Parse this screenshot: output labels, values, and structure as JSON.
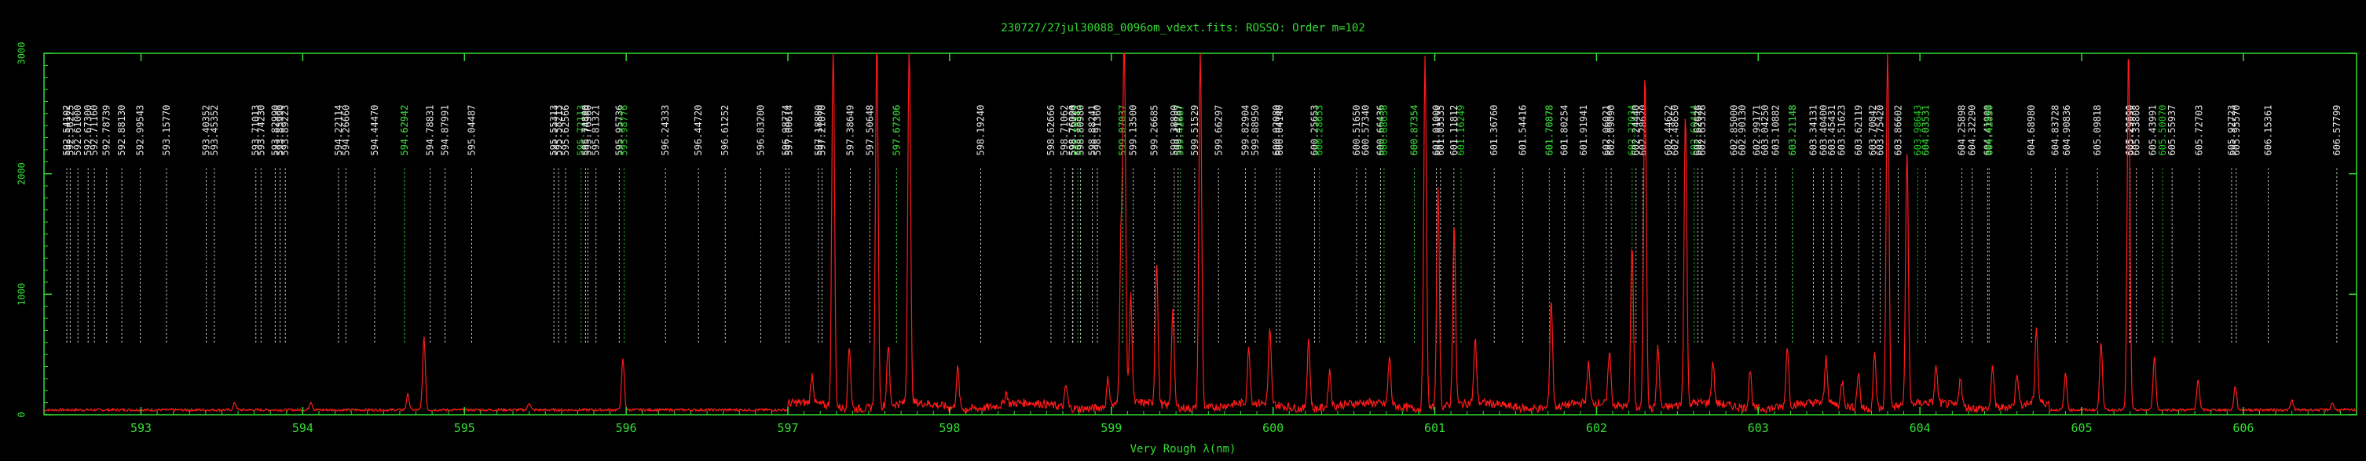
{
  "chart_data": {
    "type": "line",
    "title": "230727/27jul30088_0096om_vdext.fits: ROSSO: Order m=102",
    "xlabel": "Very Rough λ(nm)",
    "ylabel": "",
    "xlim": [
      592.4,
      606.7
    ],
    "ylim": [
      0,
      3000
    ],
    "x_ticks": [
      593,
      594,
      595,
      596,
      597,
      598,
      599,
      600,
      601,
      602,
      603,
      604,
      605,
      606
    ],
    "y_ticks": [
      0,
      1000,
      2000,
      3000
    ],
    "y_tick_labels": [
      "0",
      "1000",
      "2000",
      "3000"
    ],
    "grid": false,
    "line_labels": [
      {
        "x": 592.54102,
        "label": "592.54102",
        "color": "white"
      },
      {
        "x": 592.56225,
        "label": "592.56225",
        "color": "white"
      },
      {
        "x": 592.61,
        "label": "592.61000",
        "color": "white"
      },
      {
        "x": 592.673,
        "label": "592.67300",
        "color": "white"
      },
      {
        "x": 592.7116,
        "label": "592.71160",
        "color": "white"
      },
      {
        "x": 592.78739,
        "label": "592.78739",
        "color": "white"
      },
      {
        "x": 592.8813,
        "label": "592.88130",
        "color": "white"
      },
      {
        "x": 592.99543,
        "label": "592.99543",
        "color": "white"
      },
      {
        "x": 593.1577,
        "label": "593.15770",
        "color": "white"
      },
      {
        "x": 593.40352,
        "label": "593.40352",
        "color": "white"
      },
      {
        "x": 593.45352,
        "label": "593.45352",
        "color": "white"
      },
      {
        "x": 593.71013,
        "label": "593.71013",
        "color": "white"
      },
      {
        "x": 593.7423,
        "label": "593.74230",
        "color": "white"
      },
      {
        "x": 593.8299,
        "label": "593.82990",
        "color": "white"
      },
      {
        "x": 593.8599,
        "label": "593.85990",
        "color": "white"
      },
      {
        "x": 593.89223,
        "label": "593.89223",
        "color": "white"
      },
      {
        "x": 594.22114,
        "label": "594.22114",
        "color": "white"
      },
      {
        "x": 594.2666,
        "label": "594.26660",
        "color": "white"
      },
      {
        "x": 594.4447,
        "label": "594.44470",
        "color": "white"
      },
      {
        "x": 594.62942,
        "label": "594.62942",
        "color": "white"
      },
      {
        "x": 594.62942,
        "label": "594.62942",
        "color": "green"
      },
      {
        "x": 594.78831,
        "label": "594.78831",
        "color": "white"
      },
      {
        "x": 594.87991,
        "label": "594.87991",
        "color": "white"
      },
      {
        "x": 595.04487,
        "label": "595.04487",
        "color": "white"
      },
      {
        "x": 595.55313,
        "label": "595.55313",
        "color": "white"
      },
      {
        "x": 595.58213,
        "label": "595.58213",
        "color": "white"
      },
      {
        "x": 595.62566,
        "label": "595.62566",
        "color": "white"
      },
      {
        "x": 595.72113,
        "label": "595.72113",
        "color": "green"
      },
      {
        "x": 595.7489,
        "label": "595.74890",
        "color": "white"
      },
      {
        "x": 595.7636,
        "label": "595.76360",
        "color": "white"
      },
      {
        "x": 595.81321,
        "label": "595.81321",
        "color": "white"
      },
      {
        "x": 595.95736,
        "label": "595.95736",
        "color": "white"
      },
      {
        "x": 595.98776,
        "label": "595.98776",
        "color": "green"
      },
      {
        "x": 596.24333,
        "label": "596.24333",
        "color": "white"
      },
      {
        "x": 596.4472,
        "label": "596.44720",
        "color": "white"
      },
      {
        "x": 596.61252,
        "label": "596.61252",
        "color": "white"
      },
      {
        "x": 596.832,
        "label": "596.83200",
        "color": "white"
      },
      {
        "x": 596.98774,
        "label": "596.98774",
        "color": "white"
      },
      {
        "x": 597.00614,
        "label": "597.00614",
        "color": "white"
      },
      {
        "x": 597.1888,
        "label": "597.18880",
        "color": "white"
      },
      {
        "x": 597.2107,
        "label": "597.21070",
        "color": "white"
      },
      {
        "x": 597.38649,
        "label": "597.38649",
        "color": "white"
      },
      {
        "x": 597.50648,
        "label": "597.50648",
        "color": "white"
      },
      {
        "x": 597.67206,
        "label": "597.67206",
        "color": "white"
      },
      {
        "x": 597.67206,
        "label": "597.67206",
        "color": "green"
      },
      {
        "x": 598.1924,
        "label": "598.19240",
        "color": "white"
      },
      {
        "x": 598.62666,
        "label": "598.62666",
        "color": "white"
      },
      {
        "x": 598.71062,
        "label": "598.71062",
        "color": "white"
      },
      {
        "x": 598.76,
        "label": "598.76000",
        "color": "white"
      },
      {
        "x": 598.76224,
        "label": "598.76224",
        "color": "white"
      },
      {
        "x": 598.79243,
        "label": "598.79243",
        "color": "green"
      },
      {
        "x": 598.8098,
        "label": "598.80980",
        "color": "white"
      },
      {
        "x": 598.88241,
        "label": "598.88241",
        "color": "white"
      },
      {
        "x": 598.9136,
        "label": "598.91360",
        "color": "white"
      },
      {
        "x": 599.07037,
        "label": "599.07037",
        "color": "white"
      },
      {
        "x": 599.07037,
        "label": "599.07037",
        "color": "green"
      },
      {
        "x": 599.135,
        "label": "599.13500",
        "color": "white"
      },
      {
        "x": 599.26685,
        "label": "599.26685",
        "color": "white"
      },
      {
        "x": 599.3889,
        "label": "599.38890",
        "color": "white"
      },
      {
        "x": 599.42687,
        "label": "599.42687",
        "color": "green"
      },
      {
        "x": 599.41287,
        "label": "599.41287",
        "color": "white"
      },
      {
        "x": 599.51529,
        "label": "599.51529",
        "color": "white"
      },
      {
        "x": 599.66297,
        "label": "599.66297",
        "color": "white"
      },
      {
        "x": 599.82904,
        "label": "599.82904",
        "color": "white"
      },
      {
        "x": 599.8895,
        "label": "599.88950",
        "color": "white"
      },
      {
        "x": 600.0208,
        "label": "600.02080",
        "color": "white"
      },
      {
        "x": 600.0414,
        "label": "600.04140",
        "color": "white"
      },
      {
        "x": 600.25653,
        "label": "600.25653",
        "color": "white"
      },
      {
        "x": 600.28653,
        "label": "600.28653",
        "color": "green"
      },
      {
        "x": 600.5165,
        "label": "600.51650",
        "color": "white"
      },
      {
        "x": 600.5734,
        "label": "600.57340",
        "color": "white"
      },
      {
        "x": 600.66436,
        "label": "600.66436",
        "color": "white"
      },
      {
        "x": 600.68636,
        "label": "600.68636",
        "color": "green"
      },
      {
        "x": 600.87354,
        "label": "600.87354",
        "color": "white"
      },
      {
        "x": 600.87354,
        "label": "600.87354",
        "color": "green"
      },
      {
        "x": 601.01,
        "label": "601.01000",
        "color": "white"
      },
      {
        "x": 601.03535,
        "label": "601.03535",
        "color": "white"
      },
      {
        "x": 601.11812,
        "label": "601.11812",
        "color": "white"
      },
      {
        "x": 601.16249,
        "label": "601.16249",
        "color": "green"
      },
      {
        "x": 601.3676,
        "label": "601.36760",
        "color": "white"
      },
      {
        "x": 601.54416,
        "label": "601.54416",
        "color": "white"
      },
      {
        "x": 601.70878,
        "label": "601.70878",
        "color": "white"
      },
      {
        "x": 601.70878,
        "label": "601.70878",
        "color": "green"
      },
      {
        "x": 601.80254,
        "label": "601.80254",
        "color": "white"
      },
      {
        "x": 601.91941,
        "label": "601.91941",
        "color": "white"
      },
      {
        "x": 602.06021,
        "label": "602.06021",
        "color": "white"
      },
      {
        "x": 602.0909,
        "label": "602.09090",
        "color": "white"
      },
      {
        "x": 602.22034,
        "label": "602.22034",
        "color": "green"
      },
      {
        "x": 602.2444,
        "label": "602.24440",
        "color": "white"
      },
      {
        "x": 602.2862,
        "label": "602.28620",
        "color": "white"
      },
      {
        "x": 602.44622,
        "label": "602.44622",
        "color": "white"
      },
      {
        "x": 602.4865,
        "label": "602.48650",
        "color": "white"
      },
      {
        "x": 602.60444,
        "label": "602.60444",
        "color": "green"
      },
      {
        "x": 602.62626,
        "label": "602.62626",
        "color": "white"
      },
      {
        "x": 602.65326,
        "label": "602.65326",
        "color": "white"
      },
      {
        "x": 602.85,
        "label": "602.85000",
        "color": "white"
      },
      {
        "x": 602.9013,
        "label": "602.90130",
        "color": "white"
      },
      {
        "x": 602.99171,
        "label": "602.99171",
        "color": "white"
      },
      {
        "x": 603.0425,
        "label": "603.04250",
        "color": "white"
      },
      {
        "x": 603.10882,
        "label": "603.10882",
        "color": "white"
      },
      {
        "x": 603.21148,
        "label": "603.21148",
        "color": "white"
      },
      {
        "x": 603.21148,
        "label": "603.21148",
        "color": "green"
      },
      {
        "x": 603.34131,
        "label": "603.34131",
        "color": "white"
      },
      {
        "x": 603.404,
        "label": "603.40400",
        "color": "white"
      },
      {
        "x": 603.45431,
        "label": "603.45431",
        "color": "white"
      },
      {
        "x": 603.51623,
        "label": "603.51623",
        "color": "white"
      },
      {
        "x": 603.62119,
        "label": "603.62119",
        "color": "white"
      },
      {
        "x": 603.70842,
        "label": "603.70842",
        "color": "white"
      },
      {
        "x": 603.7542,
        "label": "603.75420",
        "color": "white"
      },
      {
        "x": 603.86602,
        "label": "603.86602",
        "color": "white"
      },
      {
        "x": 603.98643,
        "label": "603.98643",
        "color": "green"
      },
      {
        "x": 604.03531,
        "label": "604.03531",
        "color": "white"
      },
      {
        "x": 604.03531,
        "label": "604.03531",
        "color": "green"
      },
      {
        "x": 604.25898,
        "label": "604.25898",
        "color": "white"
      },
      {
        "x": 604.3229,
        "label": "604.32290",
        "color": "white"
      },
      {
        "x": 604.419,
        "label": "604.41900",
        "color": "white"
      },
      {
        "x": 604.4283,
        "label": "604.42830",
        "color": "white"
      },
      {
        "x": 604.4283,
        "label": "604.42830",
        "color": "green"
      },
      {
        "x": 604.6898,
        "label": "604.68980",
        "color": "white"
      },
      {
        "x": 604.83728,
        "label": "604.83728",
        "color": "white"
      },
      {
        "x": 604.90836,
        "label": "604.90836",
        "color": "white"
      },
      {
        "x": 605.09818,
        "label": "605.09818",
        "color": "white"
      },
      {
        "x": 605.2969,
        "label": "605.29690",
        "color": "white"
      },
      {
        "x": 605.29999,
        "label": "605.29999",
        "color": "white"
      },
      {
        "x": 605.33808,
        "label": "605.33808",
        "color": "white"
      },
      {
        "x": 605.43991,
        "label": "605.43991",
        "color": "white"
      },
      {
        "x": 605.55937,
        "label": "605.55937",
        "color": "white"
      },
      {
        "x": 605.5007,
        "label": "605.50070",
        "color": "green"
      },
      {
        "x": 605.72703,
        "label": "605.72703",
        "color": "white"
      },
      {
        "x": 605.92723,
        "label": "605.92723",
        "color": "white"
      },
      {
        "x": 605.9557,
        "label": "605.95570",
        "color": "white"
      },
      {
        "x": 606.15361,
        "label": "606.15361",
        "color": "white"
      },
      {
        "x": 606.57799,
        "label": "606.57799",
        "color": "white"
      }
    ],
    "series": [
      {
        "baseline": 40,
        "color": "#ff1a1a",
        "peaks": [
          [
            593.58,
            60
          ],
          [
            594.05,
            70
          ],
          [
            594.65,
            130
          ],
          [
            594.75,
            600
          ],
          [
            595.4,
            60
          ],
          [
            595.98,
            420
          ],
          [
            597.15,
            240
          ],
          [
            597.28,
            3000
          ],
          [
            597.38,
            520
          ],
          [
            597.55,
            3000
          ],
          [
            597.62,
            500
          ],
          [
            597.75,
            3000
          ],
          [
            598.05,
            330
          ],
          [
            598.35,
            100
          ],
          [
            598.72,
            180
          ],
          [
            598.98,
            230
          ],
          [
            599.06,
            1350
          ],
          [
            599.08,
            3000
          ],
          [
            599.12,
            900
          ],
          [
            599.28,
            1200
          ],
          [
            599.38,
            800
          ],
          [
            599.55,
            3000
          ],
          [
            599.85,
            450
          ],
          [
            599.98,
            610
          ],
          [
            600.22,
            580
          ],
          [
            600.35,
            300
          ],
          [
            600.72,
            400
          ],
          [
            600.94,
            2900
          ],
          [
            601.02,
            1800
          ],
          [
            601.12,
            1500
          ],
          [
            601.25,
            520
          ],
          [
            601.72,
            900
          ],
          [
            601.95,
            320
          ],
          [
            602.08,
            450
          ],
          [
            602.22,
            1350
          ],
          [
            602.3,
            2800
          ],
          [
            602.38,
            500
          ],
          [
            602.55,
            2400
          ],
          [
            602.72,
            350
          ],
          [
            602.95,
            320
          ],
          [
            603.18,
            500
          ],
          [
            603.42,
            380
          ],
          [
            603.52,
            200
          ],
          [
            603.62,
            300
          ],
          [
            603.72,
            450
          ],
          [
            603.8,
            3000
          ],
          [
            603.92,
            2100
          ],
          [
            604.1,
            300
          ],
          [
            604.25,
            250
          ],
          [
            604.45,
            350
          ],
          [
            604.6,
            280
          ],
          [
            604.72,
            620
          ],
          [
            604.9,
            300
          ],
          [
            605.12,
            570
          ],
          [
            605.29,
            3000
          ],
          [
            605.45,
            450
          ],
          [
            605.72,
            260
          ],
          [
            605.95,
            200
          ],
          [
            606.3,
            80
          ],
          [
            606.55,
            60
          ]
        ]
      }
    ]
  }
}
